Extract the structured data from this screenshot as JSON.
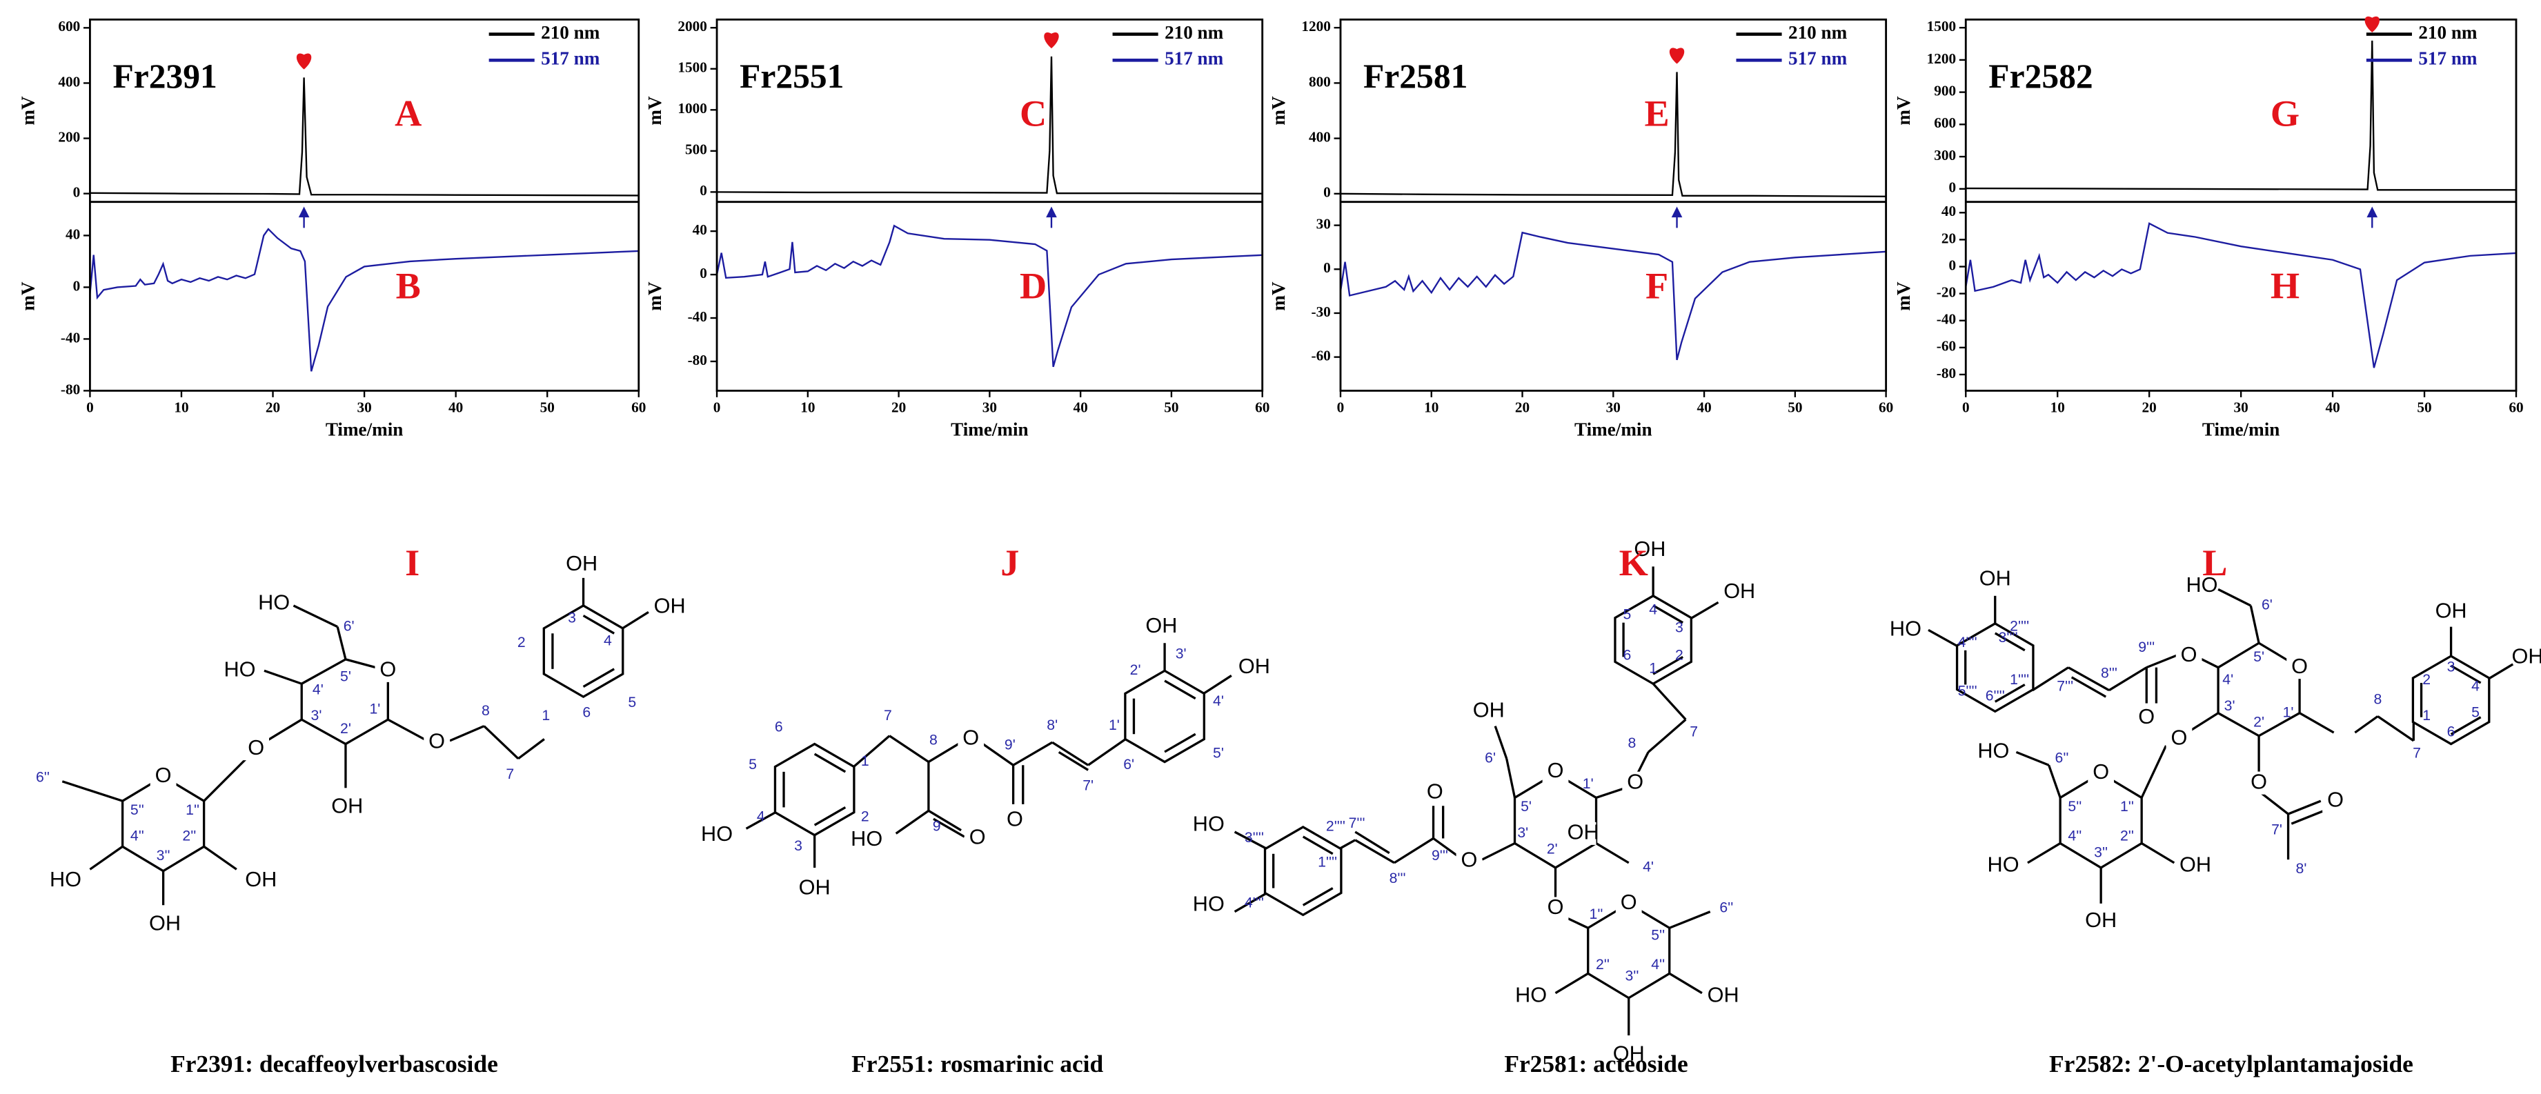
{
  "chart_data": [
    {
      "type": "line",
      "title": "Fr2391",
      "panel_labels": [
        "A",
        "B"
      ],
      "xlabel": "Time/min",
      "ylabel": "mV",
      "y2label": "mV",
      "legend": "upper right",
      "xlim": [
        0,
        60
      ],
      "xticks": [
        0,
        10,
        20,
        30,
        40,
        50,
        60
      ],
      "ylim": [
        -30,
        630
      ],
      "yticks": [
        0,
        200,
        400,
        600
      ],
      "y2lim": [
        -80,
        66
      ],
      "y2ticks": [
        -80,
        -40,
        0,
        40
      ],
      "series": [
        {
          "name": "210 nm",
          "color": "#000000",
          "x": [
            0,
            10,
            20,
            22.9,
            23.2,
            23.4,
            23.7,
            24.2,
            30,
            40,
            50,
            60
          ],
          "values": [
            2,
            0,
            -1,
            -2,
            150,
            420,
            60,
            -4,
            -4,
            -5,
            -6,
            -7
          ]
        },
        {
          "name": "517 nm",
          "color": "#1c1ca0",
          "axis": "y2",
          "x": [
            0,
            0.4,
            0.8,
            1.5,
            3,
            5,
            5.5,
            6,
            7,
            7.5,
            8,
            8.5,
            9,
            10,
            11,
            12,
            13,
            14,
            15,
            16,
            17,
            18,
            19,
            19.5,
            20.5,
            22,
            23,
            23.5,
            24.2,
            25,
            26,
            28,
            30,
            35,
            40,
            50,
            60
          ],
          "values": [
            -5,
            25,
            -8,
            -2,
            0,
            1,
            6,
            2,
            3,
            10,
            18,
            5,
            3,
            6,
            4,
            7,
            5,
            8,
            6,
            9,
            7,
            10,
            40,
            45,
            38,
            30,
            28,
            20,
            -65,
            -45,
            -15,
            8,
            16,
            20,
            22,
            25,
            28
          ]
        }
      ]
    },
    {
      "type": "line",
      "title": "Fr2551",
      "panel_labels": [
        "C",
        "D"
      ],
      "xlabel": "Time/min",
      "ylabel": "mV",
      "y2label": "mV",
      "legend": "upper right",
      "xlim": [
        0,
        60
      ],
      "xticks": [
        0,
        10,
        20,
        30,
        40,
        50,
        60
      ],
      "ylim": [
        -120,
        2100
      ],
      "yticks": [
        0,
        500,
        1000,
        1500,
        2000
      ],
      "y2lim": [
        -107,
        67
      ],
      "y2ticks": [
        -80,
        -40,
        0,
        40
      ],
      "series": [
        {
          "name": "210 nm",
          "color": "#000000",
          "x": [
            0,
            10,
            20,
            36.3,
            36.6,
            36.8,
            37.0,
            37.4,
            45,
            60
          ],
          "values": [
            0,
            -5,
            -5,
            -10,
            500,
            1650,
            200,
            -15,
            -15,
            -20
          ]
        },
        {
          "name": "517 nm",
          "color": "#1c1ca0",
          "axis": "y2",
          "x": [
            0,
            0.5,
            1,
            3,
            5,
            5.3,
            5.6,
            7,
            8,
            8.3,
            8.6,
            10,
            11,
            12,
            13,
            14,
            15,
            16,
            17,
            18,
            19,
            19.5,
            21,
            25,
            30,
            35,
            36.3,
            37,
            37.5,
            39,
            42,
            45,
            50,
            60
          ],
          "values": [
            0,
            20,
            -3,
            -2,
            0,
            12,
            -2,
            2,
            5,
            30,
            2,
            3,
            8,
            4,
            10,
            6,
            12,
            8,
            13,
            9,
            30,
            45,
            38,
            33,
            32,
            28,
            22,
            -85,
            -70,
            -30,
            0,
            10,
            14,
            18
          ]
        }
      ]
    },
    {
      "type": "line",
      "title": "Fr2581",
      "panel_labels": [
        "E",
        "F"
      ],
      "xlabel": "Time/min",
      "ylabel": "mV",
      "y2label": "mV",
      "legend": "upper right",
      "xlim": [
        0,
        60
      ],
      "xticks": [
        0,
        10,
        20,
        30,
        40,
        50,
        60
      ],
      "ylim": [
        -59,
        1259
      ],
      "yticks": [
        0,
        400,
        800,
        1200
      ],
      "y2lim": [
        -83,
        46
      ],
      "y2ticks": [
        -60,
        -30,
        0,
        30
      ],
      "series": [
        {
          "name": "210 nm",
          "color": "#000000",
          "x": [
            0,
            10,
            20,
            36.5,
            36.8,
            37.0,
            37.2,
            37.6,
            45,
            60
          ],
          "values": [
            0,
            -5,
            -8,
            -10,
            300,
            880,
            100,
            -15,
            -15,
            -20
          ]
        },
        {
          "name": "517 nm",
          "color": "#1c1ca0",
          "axis": "y2",
          "x": [
            0,
            0.5,
            1,
            3,
            5,
            6,
            7,
            7.5,
            8,
            9,
            10,
            11,
            12,
            13,
            14,
            15,
            16,
            17,
            18,
            19,
            20,
            22,
            25,
            30,
            35,
            36.5,
            37,
            37.5,
            39,
            42,
            45,
            50,
            60
          ],
          "values": [
            -15,
            5,
            -18,
            -15,
            -12,
            -8,
            -14,
            -5,
            -15,
            -8,
            -16,
            -6,
            -14,
            -6,
            -12,
            -5,
            -12,
            -4,
            -10,
            -5,
            25,
            22,
            18,
            14,
            10,
            5,
            -62,
            -50,
            -20,
            -2,
            5,
            8,
            12
          ]
        }
      ]
    },
    {
      "type": "line",
      "title": "Fr2582",
      "panel_labels": [
        "G",
        "H"
      ],
      "xlabel": "Time/min",
      "ylabel": "mV",
      "y2label": "mV",
      "legend": "upper right",
      "xlim": [
        0,
        60
      ],
      "xticks": [
        0,
        10,
        20,
        30,
        40,
        50,
        60
      ],
      "ylim": [
        -121,
        1576
      ],
      "yticks": [
        0,
        300,
        600,
        900,
        1200,
        1500
      ],
      "y2lim": [
        -92,
        48
      ],
      "y2ticks": [
        -80,
        -60,
        -40,
        -20,
        0,
        20,
        40
      ],
      "series": [
        {
          "name": "210 nm",
          "color": "#000000",
          "x": [
            0,
            10,
            20,
            43.8,
            44.1,
            44.3,
            44.5,
            44.9,
            50,
            60
          ],
          "values": [
            5,
            3,
            0,
            -5,
            400,
            1380,
            150,
            -10,
            -10,
            -10
          ]
        },
        {
          "name": "517 nm",
          "color": "#1c1ca0",
          "axis": "y2",
          "x": [
            0,
            0.5,
            1,
            3,
            5,
            6,
            6.5,
            7,
            8,
            8.5,
            9,
            10,
            11,
            12,
            13,
            14,
            15,
            16,
            17,
            18,
            19,
            20,
            22,
            25,
            30,
            35,
            40,
            43,
            44.5,
            45.5,
            47,
            50,
            55,
            60
          ],
          "values": [
            -15,
            5,
            -18,
            -15,
            -10,
            -12,
            5,
            -10,
            8,
            -8,
            -6,
            -12,
            -4,
            -10,
            -4,
            -8,
            -3,
            -7,
            -2,
            -5,
            -2,
            32,
            25,
            22,
            15,
            10,
            5,
            -2,
            -75,
            -50,
            -10,
            3,
            8,
            10
          ]
        }
      ]
    }
  ],
  "structures": [
    {
      "letter": "I",
      "caption": "Fr2391: decaffeoylverbascoside",
      "labels": [
        "HO",
        "6'",
        "HO",
        "4'",
        "5'",
        "O",
        "3'",
        "2'",
        "1'",
        "OH",
        "O",
        "8",
        "7",
        "O",
        "O",
        "1''",
        "2''",
        "3''",
        "4''",
        "5''",
        "6''",
        "HO",
        "OH",
        "OH",
        "OH",
        "OH",
        "3",
        "4",
        "2",
        "1",
        "5",
        "6"
      ]
    },
    {
      "letter": "J",
      "caption": "Fr2551: rosmarinic acid",
      "labels": [
        "6",
        "5",
        "4",
        "3",
        "2",
        "1",
        "HO",
        "OH",
        "7",
        "8",
        "9",
        "HO",
        "O",
        "O",
        "9'",
        "O",
        "8'",
        "7'",
        "1'",
        "2'",
        "3'",
        "OH",
        "4'",
        "OH",
        "5'",
        "6'"
      ]
    },
    {
      "letter": "K",
      "caption": "Fr2581: acteoside",
      "labels": [
        "OH",
        "OH",
        "4",
        "3",
        "5",
        "6",
        "2",
        "1",
        "7",
        "8",
        "O",
        "1'",
        "O",
        "5'",
        "6'",
        "OH",
        "4'",
        "3'",
        "2'",
        "OH",
        "O",
        "9'''",
        "O",
        "8'''",
        "7'''",
        "1''''",
        "2''''",
        "3''''",
        "4''''",
        "HO",
        "HO",
        "O",
        "1''",
        "O",
        "5''",
        "6''",
        "2''",
        "HO",
        "3''",
        "OH",
        "4''",
        "OH"
      ]
    },
    {
      "letter": "L",
      "caption": "Fr2582: 2'-O-acetylplantamajoside",
      "labels": [
        "OH",
        "HO",
        "3''''",
        "4''''",
        "2''''",
        "5''''",
        "6''''",
        "1''''",
        "7'''",
        "8'''",
        "9'''",
        "O",
        "O",
        "4'",
        "5'",
        "6'",
        "HO",
        "O",
        "1'",
        "2'",
        "3'",
        "O",
        "8",
        "7",
        "1",
        "2",
        "3",
        "4",
        "5",
        "6",
        "OH",
        "OH",
        "O",
        "7'",
        "O",
        "8'",
        "O",
        "1''",
        "2''",
        "3''",
        "4''",
        "5''",
        "6''",
        "HO",
        "OH",
        "OH",
        "HO"
      ]
    }
  ]
}
